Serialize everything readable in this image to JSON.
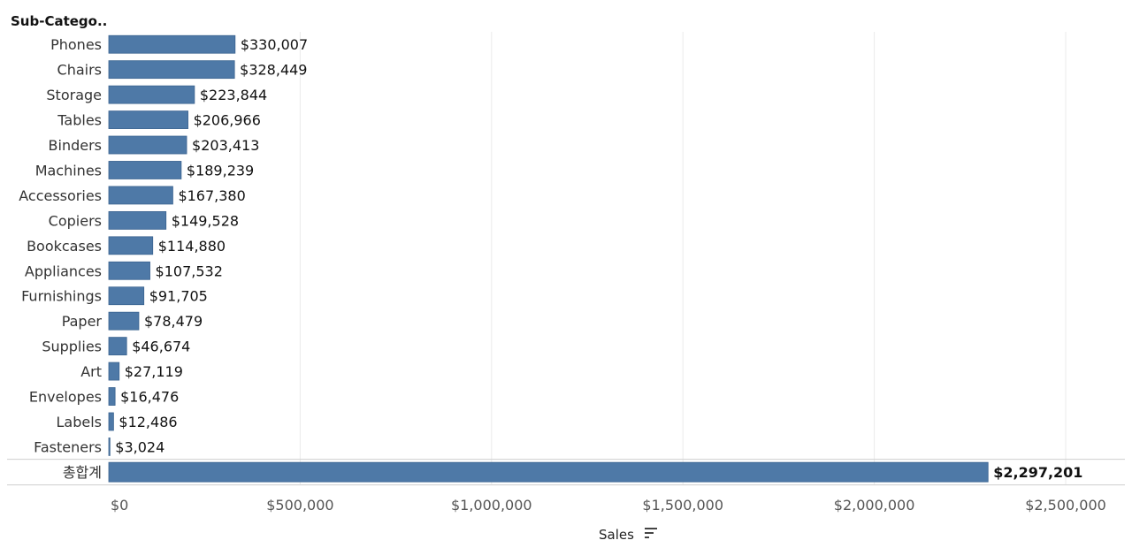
{
  "chart_data": {
    "type": "bar",
    "orientation": "horizontal",
    "row_header": "Sub-Catego..",
    "categories": [
      "Phones",
      "Chairs",
      "Storage",
      "Tables",
      "Binders",
      "Machines",
      "Accessories",
      "Copiers",
      "Bookcases",
      "Appliances",
      "Furnishings",
      "Paper",
      "Supplies",
      "Art",
      "Envelopes",
      "Labels",
      "Fasteners"
    ],
    "values": [
      330007,
      328449,
      223844,
      206966,
      203413,
      189239,
      167380,
      149528,
      114880,
      107532,
      91705,
      78479,
      46674,
      27119,
      16476,
      12486,
      3024
    ],
    "value_labels": [
      "$330,007",
      "$328,449",
      "$223,844",
      "$206,966",
      "$203,413",
      "$189,239",
      "$167,380",
      "$149,528",
      "$114,880",
      "$107,532",
      "$91,705",
      "$78,479",
      "$46,674",
      "$27,119",
      "$16,476",
      "$12,486",
      "$3,024"
    ],
    "total": {
      "label": "총합계",
      "value": 2297201,
      "value_label": "$2,297,201"
    },
    "xlabel": "Sales",
    "xlim": [
      0,
      2500000
    ],
    "x_ticks": [
      0,
      500000,
      1000000,
      1500000,
      2000000,
      2500000
    ],
    "x_tick_labels": [
      "$0",
      "$500,000",
      "$1,000,000",
      "$1,500,000",
      "$2,000,000",
      "$2,500,000"
    ],
    "grid": "vertical",
    "bar_color": "#4e79a7",
    "sorted": "descending"
  }
}
